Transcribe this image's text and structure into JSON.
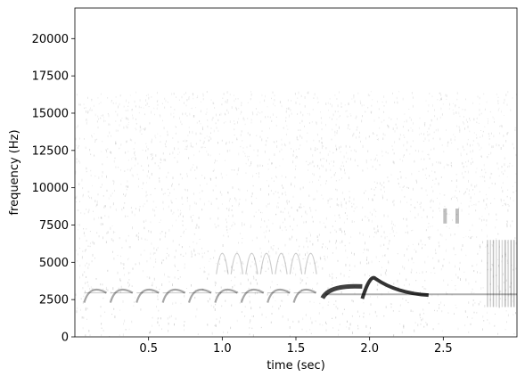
{
  "chart_data": {
    "type": "heatmap",
    "subtype": "spectrogram",
    "colormap": "Greys",
    "xlabel": "time (sec)",
    "ylabel": "frequency (Hz)",
    "xlim": [
      0.0,
      3.0
    ],
    "ylim": [
      0,
      22050
    ],
    "x_ticks": [
      0.5,
      1.0,
      1.5,
      2.0,
      2.5
    ],
    "x_tick_labels": [
      "0.5",
      "1.0",
      "1.5",
      "2.0",
      "2.5"
    ],
    "y_ticks": [
      0,
      2500,
      5000,
      7500,
      10000,
      12500,
      15000,
      17500,
      20000
    ],
    "y_tick_labels": [
      "0",
      "2500",
      "5000",
      "7500",
      "10000",
      "12500",
      "15000",
      "17500",
      "20000"
    ],
    "grid": false,
    "noise_band_max_hz": 16500,
    "features": [
      {
        "kind": "harmonic-chirps",
        "t_start": 0.05,
        "t_end": 1.65,
        "f_low": 2300,
        "f_high": 3600,
        "intensity": 0.35
      },
      {
        "kind": "upper-harmonics",
        "t_start": 0.95,
        "t_end": 1.65,
        "f_low": 4200,
        "f_high": 7000,
        "intensity": 0.2
      },
      {
        "kind": "rising-call",
        "t_start": 1.68,
        "t_end": 1.95,
        "f_low": 2600,
        "f_high": 3500,
        "intensity": 0.75
      },
      {
        "kind": "peaked-call",
        "t_start": 1.95,
        "t_end": 2.4,
        "f_low": 2800,
        "f_high": 3900,
        "intensity": 0.8
      },
      {
        "kind": "tonal-line",
        "t_start": 1.7,
        "t_end": 3.0,
        "f_low": 2800,
        "f_high": 2900,
        "intensity": 0.3
      },
      {
        "kind": "vertical-streaks",
        "t_start": 2.8,
        "t_end": 3.0,
        "f_low": 2000,
        "f_high": 6500,
        "intensity": 0.3
      },
      {
        "kind": "small-marks",
        "t_start": 2.5,
        "t_end": 2.65,
        "f_low": 7600,
        "f_high": 8600,
        "intensity": 0.25
      }
    ]
  }
}
